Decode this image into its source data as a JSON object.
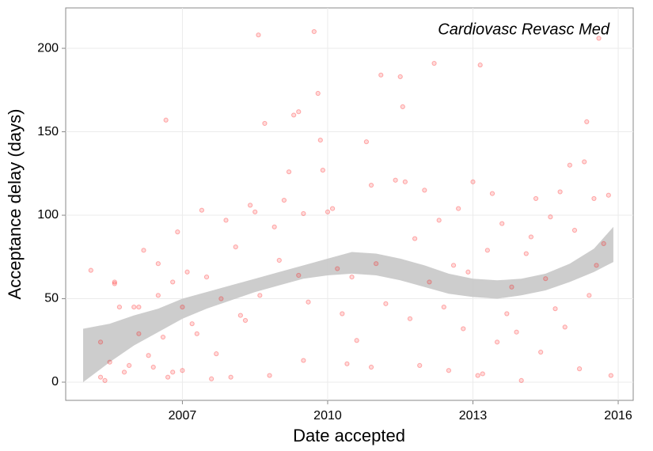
{
  "chart_data": {
    "type": "scatter",
    "annotation": "Cardiovasc Revasc Med",
    "x_label": "Date accepted",
    "y_label": "Acceptance delay (days)",
    "xlim": [
      2004.59,
      2016.31
    ],
    "xticks": [
      2007,
      2010,
      2013,
      2016
    ],
    "ylim": [
      -10.9,
      224.2
    ],
    "yticks": [
      0,
      50,
      100,
      150,
      200
    ],
    "grid": true,
    "series": [
      {
        "color": "#ff0000",
        "x": [
          2005.11,
          2005.31,
          2005.31,
          2005.4,
          2005.5,
          2005.6,
          2005.6,
          2005.7,
          2005.8,
          2005.9,
          2006.0,
          2006.1,
          2006.1,
          2006.2,
          2006.3,
          2006.4,
          2006.5,
          2006.5,
          2006.6,
          2006.66,
          2006.7,
          2006.8,
          2006.8,
          2006.9,
          2007.0,
          2007.0,
          2007.1,
          2007.2,
          2007.3,
          2007.4,
          2007.5,
          2007.6,
          2007.7,
          2007.8,
          2007.9,
          2008.0,
          2008.1,
          2008.2,
          2008.3,
          2008.4,
          2008.5,
          2008.57,
          2008.6,
          2008.7,
          2008.8,
          2008.9,
          2009.0,
          2009.1,
          2009.2,
          2009.3,
          2009.4,
          2009.4,
          2009.5,
          2009.5,
          2009.6,
          2009.72,
          2009.8,
          2009.85,
          2009.9,
          2010.0,
          2010.1,
          2010.2,
          2010.3,
          2010.4,
          2010.5,
          2010.6,
          2010.8,
          2010.9,
          2010.9,
          2011.0,
          2011.1,
          2011.2,
          2011.4,
          2011.5,
          2011.55,
          2011.6,
          2011.7,
          2011.8,
          2011.9,
          2012.0,
          2012.1,
          2012.2,
          2012.3,
          2012.4,
          2012.5,
          2012.6,
          2012.7,
          2012.8,
          2012.9,
          2013.0,
          2013.1,
          2013.15,
          2013.2,
          2013.3,
          2013.4,
          2013.5,
          2013.6,
          2013.7,
          2013.8,
          2013.9,
          2014.0,
          2014.1,
          2014.2,
          2014.3,
          2014.4,
          2014.5,
          2014.6,
          2014.7,
          2014.8,
          2014.9,
          2015.0,
          2015.1,
          2015.2,
          2015.3,
          2015.35,
          2015.4,
          2015.5,
          2015.55,
          2015.6,
          2015.7,
          2015.8,
          2015.85
        ],
        "values": [
          67,
          24,
          3,
          1,
          12,
          59,
          60,
          45,
          6,
          10,
          45,
          45,
          29,
          79,
          16,
          9,
          52,
          71,
          27,
          157,
          3,
          60,
          6,
          90,
          45,
          7,
          66,
          35,
          29,
          103,
          63,
          2,
          17,
          50,
          97,
          3,
          81,
          40,
          37,
          106,
          102,
          208,
          52,
          155,
          4,
          93,
          73,
          109,
          126,
          160,
          162,
          64,
          13,
          101,
          48,
          210,
          173,
          145,
          127,
          102,
          104,
          68,
          41,
          11,
          63,
          25,
          144,
          118,
          9,
          71,
          184,
          47,
          121,
          183,
          165,
          120,
          38,
          86,
          10,
          115,
          60,
          191,
          97,
          45,
          7,
          70,
          104,
          32,
          66,
          120,
          4,
          190,
          5,
          79,
          113,
          24,
          95,
          41,
          57,
          30,
          1,
          77,
          87,
          110,
          18,
          62,
          99,
          44,
          114,
          33,
          130,
          91,
          8,
          132,
          156,
          52,
          110,
          70,
          206,
          83,
          112,
          4
        ]
      }
    ],
    "band": {
      "color": "#c8c8c8",
      "x": [
        2004.95,
        2005.5,
        2006,
        2006.5,
        2007,
        2007.5,
        2008,
        2008.5,
        2009,
        2009.5,
        2010,
        2010.5,
        2011,
        2011.5,
        2012,
        2012.5,
        2013,
        2013.5,
        2014,
        2014.5,
        2015,
        2015.5,
        2015.9
      ],
      "lower": [
        0,
        12,
        22,
        30,
        38,
        44,
        49,
        54,
        58,
        62,
        64,
        65,
        64,
        61,
        57,
        53,
        51,
        50,
        52,
        55,
        60,
        66,
        72
      ],
      "upper": [
        32,
        35,
        40,
        44,
        50,
        54,
        58,
        62,
        66,
        70,
        74,
        78,
        77,
        74,
        70,
        65,
        62,
        61,
        62,
        65,
        71,
        80,
        93
      ]
    }
  }
}
